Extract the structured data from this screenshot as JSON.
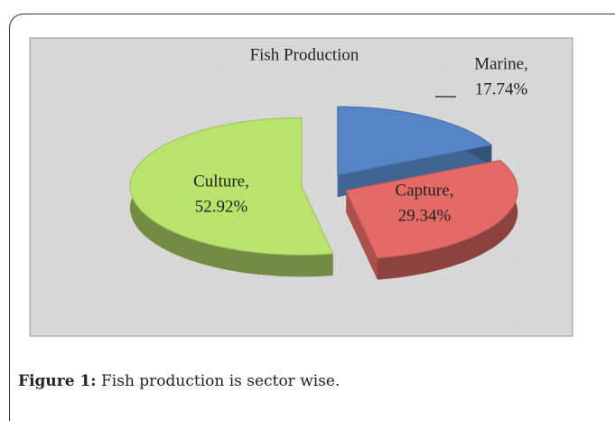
{
  "chart_data": {
    "type": "pie",
    "title": "Fish Production",
    "categories": [
      "Marine,",
      "Capture,",
      "Culture,"
    ],
    "values": [
      17.74,
      29.34,
      52.92
    ],
    "value_labels": [
      "17.74%",
      "29.34%",
      "52.92%"
    ],
    "colors": [
      "#5585c5",
      "#e46a66",
      "#b8e36c"
    ]
  },
  "caption": {
    "label": "Figure 1:",
    "text": "Fish production is sector wise."
  }
}
